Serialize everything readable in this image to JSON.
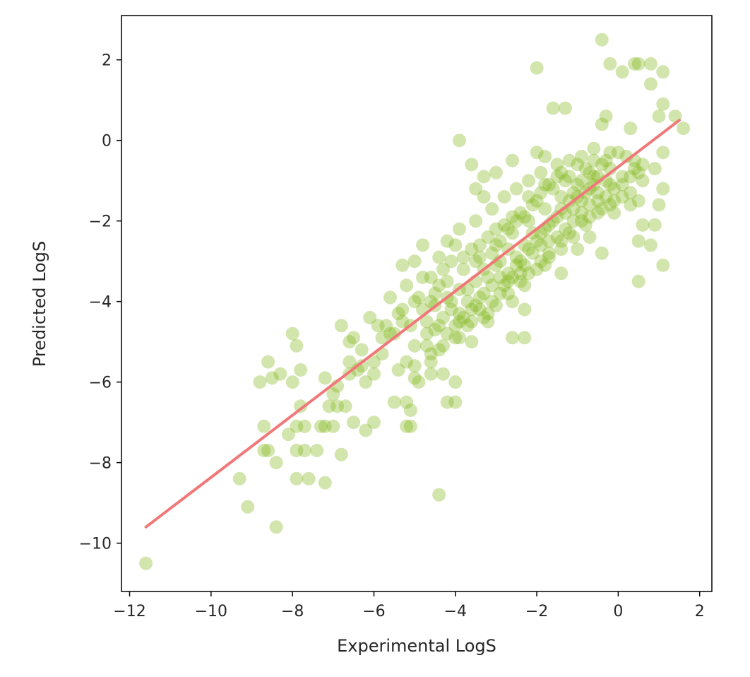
{
  "chart_data": {
    "type": "scatter",
    "title": "",
    "xlabel": "Experimental LogS",
    "ylabel": "Predicted LogS",
    "xlim": [
      -12.2,
      2.3
    ],
    "ylim": [
      -11.2,
      3.1
    ],
    "xticks": [
      -12,
      -10,
      -8,
      -6,
      -4,
      -2,
      0,
      2
    ],
    "yticks": [
      -10,
      -8,
      -6,
      -4,
      -2,
      0,
      2
    ],
    "xtick_labels": [
      "−12",
      "−10",
      "−8",
      "−6",
      "−4",
      "−2",
      "0",
      "2"
    ],
    "ytick_labels": [
      "−10",
      "−8",
      "−6",
      "−4",
      "−2",
      "0",
      "2"
    ],
    "grid": false,
    "point_color": "#7fb414",
    "point_opacity": 0.35,
    "fit_line_color": "#f07878",
    "fit_line": {
      "x": [
        -11.6,
        1.5
      ],
      "y": [
        -9.6,
        0.5
      ]
    },
    "points": [
      [
        -11.6,
        -10.5
      ],
      [
        -9.1,
        -9.1
      ],
      [
        -8.4,
        -9.6
      ],
      [
        -9.3,
        -8.4
      ],
      [
        -8.7,
        -7.7
      ],
      [
        -8.6,
        -7.7
      ],
      [
        -8.4,
        -8.0
      ],
      [
        -8.7,
        -7.1
      ],
      [
        -8.8,
        -6.0
      ],
      [
        -8.6,
        -5.5
      ],
      [
        -8.5,
        -5.9
      ],
      [
        -8.3,
        -5.8
      ],
      [
        -8.0,
        -4.8
      ],
      [
        -7.9,
        -5.1
      ],
      [
        -7.8,
        -5.7
      ],
      [
        -8.0,
        -6.0
      ],
      [
        -7.8,
        -6.6
      ],
      [
        -7.9,
        -7.1
      ],
      [
        -7.7,
        -7.1
      ],
      [
        -8.1,
        -7.3
      ],
      [
        -7.9,
        -7.7
      ],
      [
        -7.7,
        -7.7
      ],
      [
        -7.9,
        -8.4
      ],
      [
        -7.6,
        -8.4
      ],
      [
        -7.4,
        -7.7
      ],
      [
        -7.3,
        -7.1
      ],
      [
        -7.2,
        -7.1
      ],
      [
        -7.2,
        -8.5
      ],
      [
        -7.0,
        -7.1
      ],
      [
        -7.1,
        -6.6
      ],
      [
        -7.0,
        -6.3
      ],
      [
        -6.9,
        -6.1
      ],
      [
        -6.9,
        -6.6
      ],
      [
        -6.7,
        -6.6
      ],
      [
        -6.8,
        -7.8
      ],
      [
        -6.5,
        -7.0
      ],
      [
        -6.2,
        -7.2
      ],
      [
        -6.0,
        -7.0
      ],
      [
        -6.2,
        -6.0
      ],
      [
        -6.4,
        -5.7
      ],
      [
        -6.6,
        -5.5
      ],
      [
        -7.2,
        -5.9
      ],
      [
        -6.6,
        -5.0
      ],
      [
        -6.8,
        -4.6
      ],
      [
        -6.5,
        -4.9
      ],
      [
        -6.3,
        -5.2
      ],
      [
        -6.1,
        -4.4
      ],
      [
        -6.0,
        -5.5
      ],
      [
        -5.8,
        -4.9
      ],
      [
        -5.7,
        -4.6
      ],
      [
        -5.5,
        -4.8
      ],
      [
        -5.2,
        -5.5
      ],
      [
        -5.2,
        -6.5
      ],
      [
        -5.5,
        -6.5
      ],
      [
        -5.1,
        -6.7
      ],
      [
        -5.2,
        -7.1
      ],
      [
        -5.1,
        -7.1
      ],
      [
        -4.9,
        -6.0
      ],
      [
        -5.0,
        -5.6
      ],
      [
        -4.6,
        -5.5
      ],
      [
        -4.7,
        -5.1
      ],
      [
        -4.4,
        -5.2
      ],
      [
        -4.3,
        -5.8
      ],
      [
        -4.0,
        -6.0
      ],
      [
        -4.2,
        -6.5
      ],
      [
        -4.0,
        -6.5
      ],
      [
        -3.9,
        -4.9
      ],
      [
        -4.4,
        -8.8
      ],
      [
        -3.9,
        0.0
      ],
      [
        -3.6,
        -0.6
      ],
      [
        -3.3,
        -0.9
      ],
      [
        -3.0,
        -0.8
      ],
      [
        -2.6,
        -0.5
      ],
      [
        -3.3,
        -1.4
      ],
      [
        -3.5,
        -1.2
      ],
      [
        -2.6,
        -4.9
      ],
      [
        -2.3,
        -4.9
      ],
      [
        -2.0,
        -0.3
      ],
      [
        -1.8,
        -0.4
      ],
      [
        -2.0,
        1.8
      ],
      [
        -1.6,
        0.8
      ],
      [
        -1.3,
        0.8
      ],
      [
        -0.4,
        2.5
      ],
      [
        -0.2,
        1.9
      ],
      [
        0.1,
        1.7
      ],
      [
        0.4,
        1.9
      ],
      [
        0.5,
        1.9
      ],
      [
        0.8,
        1.9
      ],
      [
        1.1,
        1.7
      ],
      [
        0.8,
        1.4
      ],
      [
        1.1,
        0.9
      ],
      [
        1.4,
        0.6
      ],
      [
        1.6,
        0.3
      ],
      [
        1.0,
        0.6
      ],
      [
        0.3,
        0.3
      ],
      [
        -0.3,
        0.6
      ],
      [
        -0.4,
        0.4
      ],
      [
        1.1,
        -0.3
      ],
      [
        0.9,
        -0.7
      ],
      [
        0.4,
        -0.5
      ],
      [
        0.6,
        -1.0
      ],
      [
        0.5,
        -1.5
      ],
      [
        1.0,
        -1.6
      ],
      [
        0.9,
        -2.1
      ],
      [
        0.5,
        -2.5
      ],
      [
        0.8,
        -2.6
      ],
      [
        1.1,
        -3.1
      ],
      [
        0.5,
        -3.5
      ],
      [
        0.6,
        -2.1
      ],
      [
        1.1,
        -1.2
      ],
      [
        -0.4,
        -2.8
      ],
      [
        -0.7,
        -2.4
      ],
      [
        -0.1,
        -1.8
      ],
      [
        -1.0,
        -2.7
      ],
      [
        -1.4,
        -3.3
      ],
      [
        -1.8,
        -3.1
      ],
      [
        -2.3,
        -3.6
      ],
      [
        -2.3,
        -4.2
      ],
      [
        -2.6,
        -4.0
      ],
      [
        -3.2,
        -4.5
      ],
      [
        -3.6,
        -5.0
      ],
      [
        -4.7,
        -4.8
      ],
      [
        -5.3,
        -4.5
      ],
      [
        -5.9,
        -4.6
      ],
      [
        -5.2,
        -3.6
      ],
      [
        -5.3,
        -3.1
      ],
      [
        -5.0,
        -3.0
      ],
      [
        -4.8,
        -2.6
      ],
      [
        -4.2,
        -2.5
      ],
      [
        -3.9,
        -2.2
      ],
      [
        -3.5,
        -2.0
      ],
      [
        -3.1,
        -1.7
      ],
      [
        -2.8,
        -1.4
      ],
      [
        -2.5,
        -1.2
      ],
      [
        -2.2,
        -1.0
      ],
      [
        -1.9,
        -0.8
      ],
      [
        -1.5,
        -0.6
      ],
      [
        -1.2,
        -0.5
      ],
      [
        -0.9,
        -0.4
      ],
      [
        -0.6,
        -0.2
      ],
      [
        -0.4,
        -0.6
      ],
      [
        -0.2,
        -1.1
      ],
      [
        0.1,
        -0.9
      ],
      [
        0.3,
        -1.3
      ],
      [
        -0.1,
        -1.5
      ],
      [
        -0.5,
        -1.8
      ],
      [
        -0.8,
        -2.1
      ],
      [
        -1.1,
        -2.4
      ],
      [
        -1.4,
        -2.7
      ],
      [
        -1.7,
        -2.9
      ],
      [
        -2.0,
        -3.2
      ],
      [
        -2.4,
        -3.5
      ],
      [
        -2.7,
        -3.8
      ],
      [
        -3.0,
        -4.1
      ],
      [
        -3.3,
        -4.4
      ],
      [
        -3.7,
        -4.6
      ],
      [
        -4.0,
        -4.9
      ],
      [
        -4.3,
        -5.1
      ],
      [
        -4.6,
        -5.3
      ],
      [
        -5.0,
        -5.1
      ],
      [
        -5.4,
        -4.3
      ],
      [
        -5.6,
        -3.9
      ],
      [
        -5.0,
        -4.0
      ],
      [
        -4.5,
        -3.8
      ],
      [
        -4.2,
        -3.5
      ],
      [
        -3.8,
        -3.2
      ],
      [
        -3.4,
        -2.9
      ],
      [
        -3.0,
        -2.6
      ],
      [
        -2.6,
        -2.3
      ],
      [
        -2.2,
        -2.0
      ],
      [
        -1.8,
        -1.7
      ],
      [
        -1.4,
        -1.4
      ],
      [
        -1.0,
        -1.1
      ],
      [
        -0.6,
        -0.9
      ],
      [
        -0.2,
        -0.7
      ],
      [
        0.2,
        -0.4
      ],
      [
        0.6,
        -0.6
      ],
      [
        -4.8,
        -4.2
      ],
      [
        -4.6,
        -3.4
      ],
      [
        -4.4,
        -2.9
      ],
      [
        -4.1,
        -3.0
      ],
      [
        -3.9,
        -3.7
      ],
      [
        -3.7,
        -4.0
      ],
      [
        -3.5,
        -3.5
      ],
      [
        -3.3,
        -3.2
      ],
      [
        -3.1,
        -3.6
      ],
      [
        -2.9,
        -3.0
      ],
      [
        -2.7,
        -2.7
      ],
      [
        -2.5,
        -3.1
      ],
      [
        -2.3,
        -2.6
      ],
      [
        -2.1,
        -2.3
      ],
      [
        -1.9,
        -2.6
      ],
      [
        -1.7,
        -2.1
      ],
      [
        -1.5,
        -1.9
      ],
      [
        -1.3,
        -2.2
      ],
      [
        -1.1,
        -1.7
      ],
      [
        -0.9,
        -1.5
      ],
      [
        -0.7,
        -1.2
      ],
      [
        -0.5,
        -1.3
      ],
      [
        -0.3,
        -1.0
      ],
      [
        -4.9,
        -3.9
      ],
      [
        -4.7,
        -4.5
      ],
      [
        -4.5,
        -4.1
      ],
      [
        -4.3,
        -4.4
      ],
      [
        -4.1,
        -4.0
      ],
      [
        -3.9,
        -4.3
      ],
      [
        -3.7,
        -3.7
      ],
      [
        -3.5,
        -4.1
      ],
      [
        -3.3,
        -3.8
      ],
      [
        -3.1,
        -4.0
      ],
      [
        -2.9,
        -3.4
      ],
      [
        -2.7,
        -3.3
      ],
      [
        -2.5,
        -2.9
      ],
      [
        -2.3,
        -3.1
      ],
      [
        -2.1,
        -2.8
      ],
      [
        -1.9,
        -2.3
      ],
      [
        -1.7,
        -2.5
      ],
      [
        -1.5,
        -2.4
      ],
      [
        -1.3,
        -1.8
      ],
      [
        -1.1,
        -2.0
      ],
      [
        -0.9,
        -1.8
      ],
      [
        -0.7,
        -1.6
      ],
      [
        -0.5,
        -1.5
      ],
      [
        -0.3,
        -1.4
      ],
      [
        -0.1,
        -1.2
      ],
      [
        0.1,
        -1.1
      ],
      [
        0.3,
        -0.9
      ],
      [
        0.5,
        -0.8
      ],
      [
        -5.1,
        -4.6
      ],
      [
        -5.3,
        -4.2
      ],
      [
        -4.8,
        -3.4
      ],
      [
        -4.0,
        -2.6
      ],
      [
        -3.6,
        -2.7
      ],
      [
        -3.2,
        -2.4
      ],
      [
        -2.8,
        -2.1
      ],
      [
        -2.4,
        -1.8
      ],
      [
        -2.0,
        -1.5
      ],
      [
        -1.6,
        -1.2
      ],
      [
        -1.2,
        -0.9
      ],
      [
        -0.8,
        -0.7
      ],
      [
        -4.4,
        -3.6
      ],
      [
        -4.2,
        -3.9
      ],
      [
        -4.0,
        -4.6
      ],
      [
        -3.8,
        -4.4
      ],
      [
        -3.6,
        -4.2
      ],
      [
        -3.4,
        -3.9
      ],
      [
        -3.2,
        -3.4
      ],
      [
        -3.0,
        -3.1
      ],
      [
        -2.8,
        -3.6
      ],
      [
        -2.6,
        -3.4
      ],
      [
        -2.4,
        -3.0
      ],
      [
        -2.2,
        -2.7
      ],
      [
        -2.0,
        -2.5
      ],
      [
        -1.8,
        -2.2
      ],
      [
        -1.6,
        -2.0
      ],
      [
        -1.4,
        -1.7
      ],
      [
        -1.2,
        -1.5
      ],
      [
        -1.0,
        -1.4
      ],
      [
        -0.8,
        -1.3
      ],
      [
        -0.6,
        -1.1
      ],
      [
        -4.6,
        -4.0
      ],
      [
        -4.3,
        -3.2
      ],
      [
        -3.8,
        -2.9
      ],
      [
        -3.5,
        -3.0
      ],
      [
        -3.1,
        -2.8
      ],
      [
        -2.9,
        -2.5
      ],
      [
        -2.7,
        -2.2
      ],
      [
        -2.5,
        -2.0
      ],
      [
        -2.3,
        -1.9
      ],
      [
        -2.1,
        -1.6
      ],
      [
        -1.9,
        -1.3
      ],
      [
        -1.7,
        -1.1
      ],
      [
        -1.5,
        -0.9
      ],
      [
        -1.3,
        -1.0
      ],
      [
        -1.1,
        -1.3
      ],
      [
        -0.9,
        -1.0
      ],
      [
        -0.7,
        -0.8
      ],
      [
        -0.5,
        -0.9
      ],
      [
        -0.3,
        -0.5
      ],
      [
        0.0,
        -0.3
      ],
      [
        -5.6,
        -4.8
      ],
      [
        -5.8,
        -5.3
      ],
      [
        -5.4,
        -5.7
      ],
      [
        -5.0,
        -5.9
      ],
      [
        -4.6,
        -5.8
      ],
      [
        -6.0,
        -5.8
      ],
      [
        -6.3,
        -5.6
      ],
      [
        -6.6,
        -5.8
      ],
      [
        -4.4,
        -4.6
      ],
      [
        -4.1,
        -4.2
      ],
      [
        -3.4,
        -2.6
      ],
      [
        -3.0,
        -2.2
      ],
      [
        -2.6,
        -1.9
      ],
      [
        -2.2,
        -1.4
      ],
      [
        -1.8,
        -1.1
      ],
      [
        -1.4,
        -0.8
      ],
      [
        -1.0,
        -0.6
      ],
      [
        -0.6,
        -0.5
      ],
      [
        -0.2,
        -0.3
      ],
      [
        0.4,
        -0.7
      ],
      [
        -4.5,
        -4.7
      ],
      [
        -4.2,
        -4.8
      ],
      [
        -3.9,
        -4.5
      ],
      [
        -3.6,
        -4.5
      ],
      [
        -3.4,
        -4.2
      ],
      [
        -3.2,
        -4.3
      ],
      [
        -2.9,
        -3.8
      ],
      [
        -2.7,
        -3.5
      ],
      [
        -2.4,
        -3.3
      ],
      [
        -2.2,
        -3.3
      ],
      [
        -1.9,
        -3.0
      ],
      [
        -1.7,
        -2.8
      ],
      [
        -1.4,
        -2.5
      ],
      [
        -1.2,
        -2.3
      ],
      [
        -0.9,
        -2.0
      ],
      [
        -0.7,
        -1.9
      ],
      [
        -0.4,
        -1.7
      ],
      [
        -0.2,
        -1.6
      ],
      [
        0.1,
        -1.4
      ],
      [
        0.3,
        -1.6
      ]
    ]
  }
}
